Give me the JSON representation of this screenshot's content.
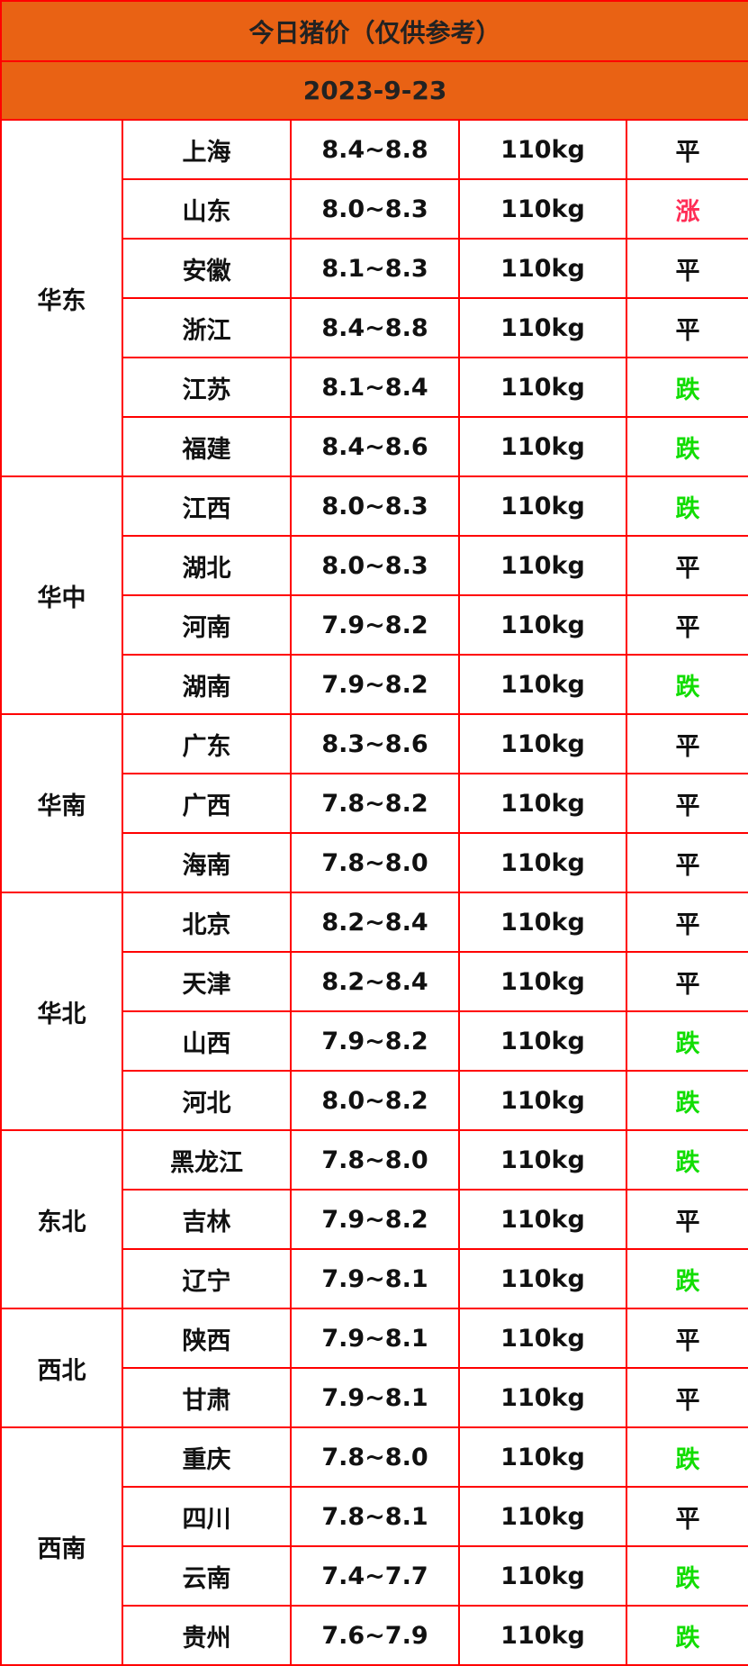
{
  "title": "今日猪价（仅供参考）",
  "date": "2023-9-23",
  "colors": {
    "header_bg": "#e96214",
    "border": "#ff0000",
    "up": "#ff2d55",
    "down": "#11dd00",
    "flat": "#111111"
  },
  "regions": [
    {
      "name": "华东",
      "rows": [
        {
          "province": "上海",
          "price": "8.4~8.8",
          "weight": "110kg",
          "trend": "平"
        },
        {
          "province": "山东",
          "price": "8.0~8.3",
          "weight": "110kg",
          "trend": "涨"
        },
        {
          "province": "安徽",
          "price": "8.1~8.3",
          "weight": "110kg",
          "trend": "平"
        },
        {
          "province": "浙江",
          "price": "8.4~8.8",
          "weight": "110kg",
          "trend": "平"
        },
        {
          "province": "江苏",
          "price": "8.1~8.4",
          "weight": "110kg",
          "trend": "跌"
        },
        {
          "province": "福建",
          "price": "8.4~8.6",
          "weight": "110kg",
          "trend": "跌"
        }
      ]
    },
    {
      "name": "华中",
      "rows": [
        {
          "province": "江西",
          "price": "8.0~8.3",
          "weight": "110kg",
          "trend": "跌"
        },
        {
          "province": "湖北",
          "price": "8.0~8.3",
          "weight": "110kg",
          "trend": "平"
        },
        {
          "province": "河南",
          "price": "7.9~8.2",
          "weight": "110kg",
          "trend": "平"
        },
        {
          "province": "湖南",
          "price": "7.9~8.2",
          "weight": "110kg",
          "trend": "跌"
        }
      ]
    },
    {
      "name": "华南",
      "rows": [
        {
          "province": "广东",
          "price": "8.3~8.6",
          "weight": "110kg",
          "trend": "平"
        },
        {
          "province": "广西",
          "price": "7.8~8.2",
          "weight": "110kg",
          "trend": "平"
        },
        {
          "province": "海南",
          "price": "7.8~8.0",
          "weight": "110kg",
          "trend": "平"
        }
      ]
    },
    {
      "name": "华北",
      "rows": [
        {
          "province": "北京",
          "price": "8.2~8.4",
          "weight": "110kg",
          "trend": "平"
        },
        {
          "province": "天津",
          "price": "8.2~8.4",
          "weight": "110kg",
          "trend": "平"
        },
        {
          "province": "山西",
          "price": "7.9~8.2",
          "weight": "110kg",
          "trend": "跌"
        },
        {
          "province": "河北",
          "price": "8.0~8.2",
          "weight": "110kg",
          "trend": "跌"
        }
      ]
    },
    {
      "name": "东北",
      "rows": [
        {
          "province": "黑龙江",
          "price": "7.8~8.0",
          "weight": "110kg",
          "trend": "跌"
        },
        {
          "province": "吉林",
          "price": "7.9~8.2",
          "weight": "110kg",
          "trend": "平"
        },
        {
          "province": "辽宁",
          "price": "7.9~8.1",
          "weight": "110kg",
          "trend": "跌"
        }
      ]
    },
    {
      "name": "西北",
      "rows": [
        {
          "province": "陕西",
          "price": "7.9~8.1",
          "weight": "110kg",
          "trend": "平"
        },
        {
          "province": "甘肃",
          "price": "7.9~8.1",
          "weight": "110kg",
          "trend": "平"
        }
      ]
    },
    {
      "name": "西南",
      "rows": [
        {
          "province": "重庆",
          "price": "7.8~8.0",
          "weight": "110kg",
          "trend": "跌"
        },
        {
          "province": "四川",
          "price": "7.8~8.1",
          "weight": "110kg",
          "trend": "平"
        },
        {
          "province": "云南",
          "price": "7.4~7.7",
          "weight": "110kg",
          "trend": "跌"
        },
        {
          "province": "贵州",
          "price": "7.6~7.9",
          "weight": "110kg",
          "trend": "跌"
        }
      ]
    }
  ]
}
